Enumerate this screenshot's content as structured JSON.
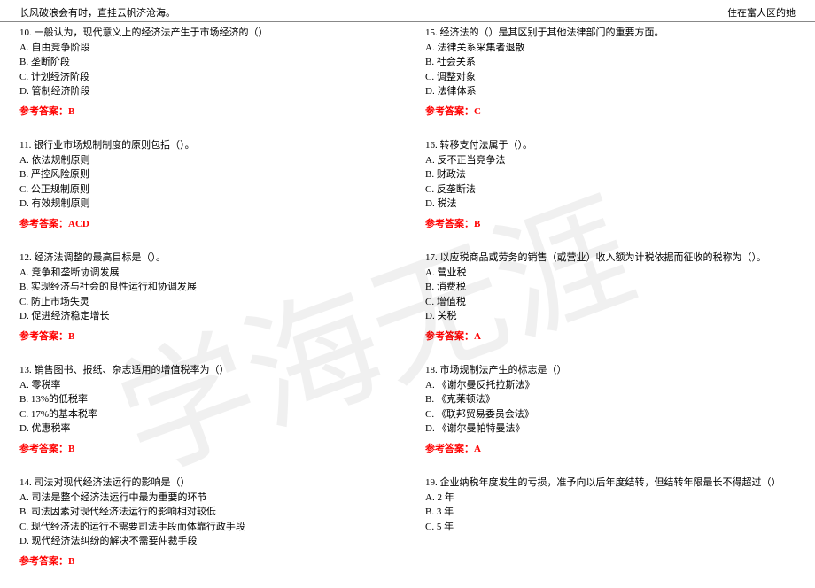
{
  "header": {
    "left": "长风破浪会有时，直挂云帆济沧海。",
    "right": "住在富人区的她"
  },
  "watermark": "学海无涯",
  "left_questions": [
    {
      "stem": "10. 一般认为，现代意义上的经济法产生于市场经济的（）",
      "opts": [
        "A. 自由竞争阶段",
        "B. 垄断阶段",
        "C. 计划经济阶段",
        "D. 管制经济阶段"
      ],
      "answer": "参考答案：B"
    },
    {
      "stem": "11. 银行业市场规制制度的原则包括（）。",
      "opts": [
        "A. 依法规制原则",
        "B. 严控风险原则",
        "C. 公正规制原则",
        "D. 有效规制原则"
      ],
      "answer": "参考答案：ACD"
    },
    {
      "stem": "12. 经济法调整的最高目标是（）。",
      "opts": [
        "A. 竞争和垄断协调发展",
        "B. 实现经济与社会的良性运行和协调发展",
        "C. 防止市场失灵",
        "D. 促进经济稳定增长"
      ],
      "answer": "参考答案：B"
    },
    {
      "stem": "13. 销售图书、报纸、杂志适用的增值税率为（）",
      "opts": [
        "A. 零税率",
        "B. 13%的低税率",
        "C. 17%的基本税率",
        "D. 优惠税率"
      ],
      "answer": "参考答案：B"
    },
    {
      "stem": "14. 司法对现代经济法运行的影响是（）",
      "opts": [
        "A. 司法是整个经济法运行中最为重要的环节",
        "B. 司法因素对现代经济法运行的影响相对较低",
        "C. 现代经济法的运行不需要司法手段而体靠行政手段",
        "D. 现代经济法纠纷的解决不需要仲裁手段"
      ],
      "answer": "参考答案：B"
    }
  ],
  "right_questions": [
    {
      "stem": "15. 经济法的（）是其区别于其他法律部门的重要方面。",
      "opts": [
        "A. 法律关系采集者退散",
        "B. 社会关系",
        "C. 调整对象",
        "D. 法律体系"
      ],
      "answer": "参考答案：C"
    },
    {
      "stem": "16. 转移支付法属于（）。",
      "opts": [
        "A. 反不正当竞争法",
        "B. 财政法",
        "C. 反垄断法",
        "D. 税法"
      ],
      "answer": "参考答案：B"
    },
    {
      "stem": "17. 以应税商品或劳务的销售（或营业）收入额为计税依据而征收的税称为（）。",
      "opts": [
        "A. 营业税",
        "B. 消费税",
        "C. 增值税",
        "D. 关税"
      ],
      "answer": "参考答案：A"
    },
    {
      "stem": "18. 市场规制法产生的标志是（）",
      "opts": [
        "A. 《谢尔曼反托拉斯法》",
        "B. 《克莱顿法》",
        "C. 《联邦贸易委员会法》",
        "D. 《谢尔曼帕特曼法》"
      ],
      "answer": "参考答案：A"
    },
    {
      "stem": "19. 企业纳税年度发生的亏损，准予向以后年度结转，但结转年限最长不得超过（）",
      "opts": [
        "A. 2 年",
        "B. 3 年",
        "C. 5 年"
      ],
      "answer": ""
    }
  ]
}
